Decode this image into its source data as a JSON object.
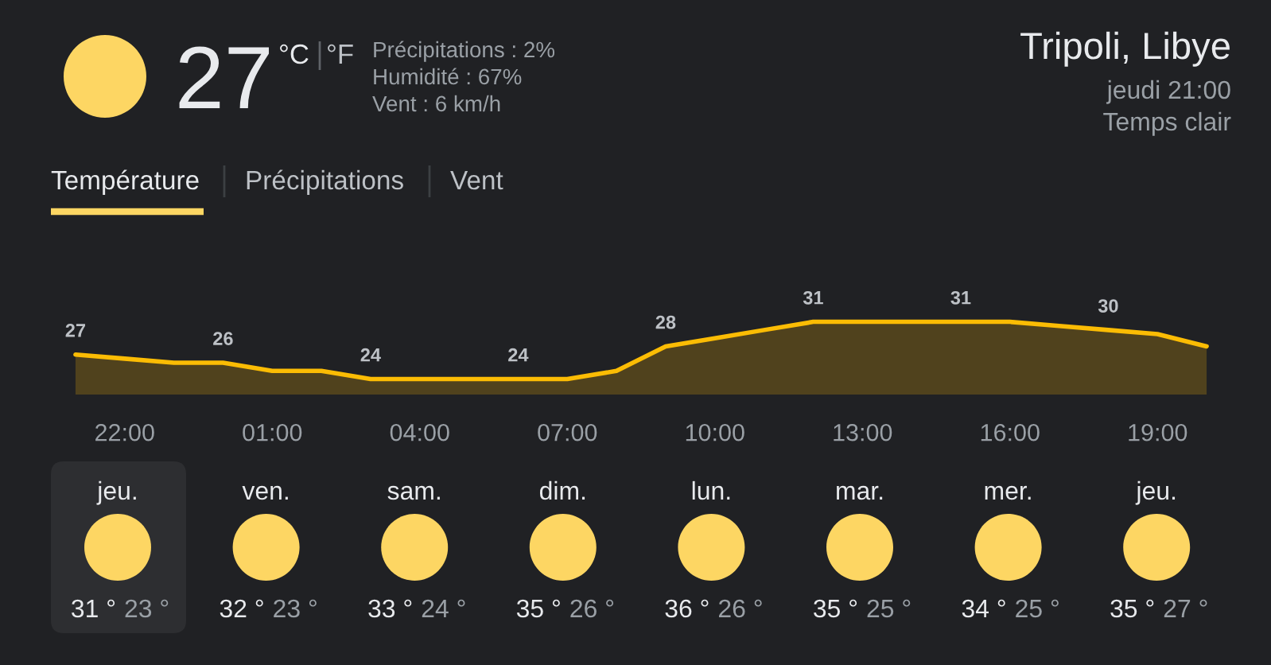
{
  "chart_data": [
    {
      "type": "other",
      "title": "Tripoli, Libye",
      "annotations": [
        "27",
        "°C",
        "°F",
        "Précipitations : 2%",
        "Humidité : 67%",
        "Vent : 6 km/h",
        "jeudi 21:00",
        "Temps clair",
        "Température",
        "Précipitations",
        "Vent"
      ]
    },
    {
      "type": "area",
      "categories": [
        null,
        "22:00",
        null,
        null,
        "01:00",
        null,
        null,
        "04:00",
        null,
        null,
        "07:00",
        null,
        null,
        "10:00",
        null,
        null,
        "13:00",
        null,
        null,
        "16:00",
        null,
        null,
        "19:00",
        null
      ],
      "series": [
        {
          "color": "#fbbc04",
          "values": [
            27,
            26.5,
            26,
            26,
            25,
            25,
            24,
            24,
            24,
            24,
            24,
            25,
            28,
            29,
            30,
            31,
            31,
            31,
            31,
            31,
            30.5,
            30,
            29.5,
            28
          ],
          "value_labels": [
            "27",
            null,
            null,
            "26",
            null,
            null,
            "24",
            null,
            null,
            "24",
            null,
            null,
            "28",
            null,
            null,
            "31",
            null,
            null,
            "31",
            null,
            null,
            "30",
            null,
            null
          ]
        }
      ],
      "tick_labels": "x"
    },
    {
      "type": "other",
      "categories": [
        "jeu.",
        "ven.",
        "sam.",
        "dim.",
        "lun.",
        "mar.",
        "mer.",
        "jeu."
      ],
      "annotations": [
        "31 °",
        "23 °",
        "32 °",
        "23 °",
        "33 °",
        "24 °",
        "35 °",
        "26 °",
        "36 °",
        "26 °",
        "35 °",
        "25 °",
        "34 °",
        "25 °",
        "35 °",
        "27 °"
      ]
    }
  ]
}
